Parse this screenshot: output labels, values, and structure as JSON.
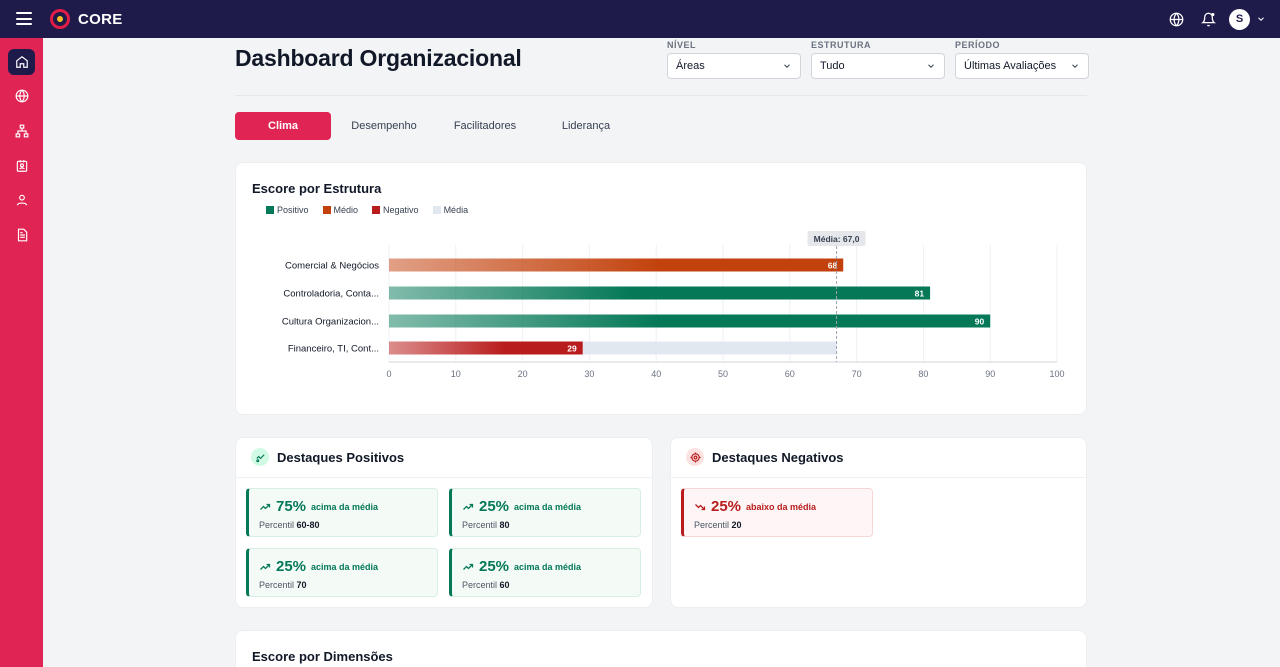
{
  "app": {
    "name": "CORE",
    "user_initial": "S"
  },
  "page": {
    "title": "Dashboard Organizacional"
  },
  "filters": [
    {
      "label": "NÍVEL",
      "value": "Áreas"
    },
    {
      "label": "ESTRUTURA",
      "value": "Tudo"
    },
    {
      "label": "PERÍODO",
      "value": "Últimas Avaliações"
    }
  ],
  "tabs": [
    {
      "label": "Clima",
      "active": true
    },
    {
      "label": "Desempenho",
      "active": false
    },
    {
      "label": "Facilitadores",
      "active": false
    },
    {
      "label": "Liderança",
      "active": false
    }
  ],
  "sidebar": {
    "items": [
      "home-icon",
      "globe-icon",
      "org-chart-icon",
      "badge-icon",
      "user-icon",
      "document-icon"
    ]
  },
  "colors": {
    "positive": "#047857",
    "medium": "#c2410c",
    "negative": "#b91c1c",
    "average": "#e2e8f0",
    "accent": "#e02454",
    "navy": "#1e1b4b"
  },
  "score_card": {
    "title": "Escore por Estrutura"
  },
  "chart_data": {
    "type": "bar",
    "orientation": "horizontal",
    "categories": [
      "Comercial & Negócios",
      "Controladoria, Conta...",
      "Cultura Organizacion...",
      "Financeiro, TI, Cont..."
    ],
    "values": [
      68,
      81,
      90,
      29
    ],
    "bands": [
      "Médio",
      "Positivo",
      "Positivo",
      "Negativo"
    ],
    "legend": [
      "Positivo",
      "Médio",
      "Negativo",
      "Média"
    ],
    "average": 67.0,
    "average_label": "Média: 67,0",
    "xlim": [
      0,
      100
    ],
    "xticks": [
      0,
      10,
      20,
      30,
      40,
      50,
      60,
      70,
      80,
      90,
      100
    ],
    "grid": true
  },
  "positive_highlights": {
    "title": "Destaques Positivos",
    "items": [
      {
        "pct": "75%",
        "text": "acima da média",
        "percentile_label": "Percentil",
        "percentile": "60-80"
      },
      {
        "pct": "25%",
        "text": "acima da média",
        "percentile_label": "Percentil",
        "percentile": "80"
      },
      {
        "pct": "25%",
        "text": "acima da média",
        "percentile_label": "Percentil",
        "percentile": "70"
      },
      {
        "pct": "25%",
        "text": "acima da média",
        "percentile_label": "Percentil",
        "percentile": "60"
      }
    ]
  },
  "negative_highlights": {
    "title": "Destaques Negativos",
    "items": [
      {
        "pct": "25%",
        "text": "abaixo da média",
        "percentile_label": "Percentil",
        "percentile": "20"
      }
    ]
  },
  "dimensions_card": {
    "title": "Escore por Dimensões"
  }
}
